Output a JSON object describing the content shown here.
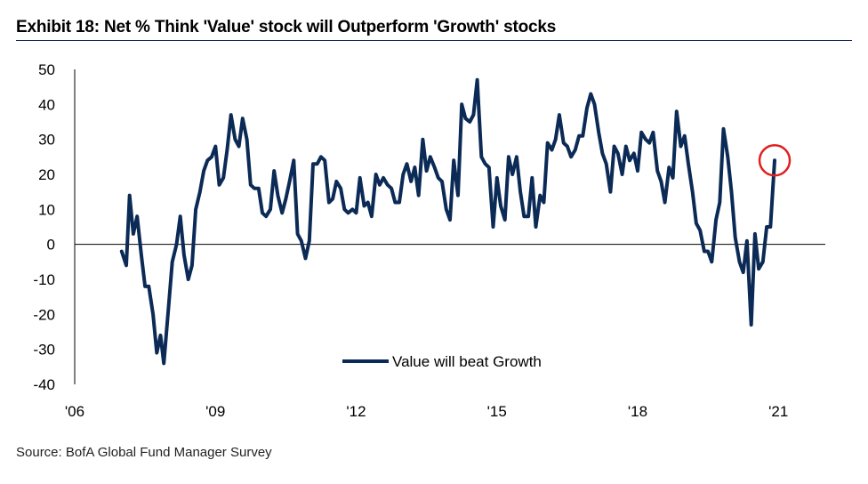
{
  "title": "Exhibit 18: Net % Think 'Value' stock will Outperform 'Growth' stocks",
  "source": "Source: BofA Global Fund Manager Survey",
  "chart_data": {
    "type": "line",
    "ylim": [
      -40,
      50
    ],
    "yticks": [
      50,
      40,
      30,
      20,
      10,
      0,
      -10,
      -20,
      -30,
      -40
    ],
    "ytick_labels": [
      "50",
      "40",
      "30",
      "20",
      "10",
      "0",
      "-10",
      "-20",
      "-30",
      "-40"
    ],
    "xlim": [
      2006,
      2022
    ],
    "xticks": [
      2006,
      2009,
      2012,
      2015,
      2018,
      2021
    ],
    "xtick_labels": [
      "'06",
      "'09",
      "'12",
      "'15",
      "'18",
      "'21"
    ],
    "grid": false,
    "legend_position": "bottom-center",
    "line_color": "#0b2a55",
    "highlight_color": "#e02020",
    "series": [
      {
        "name": "Value will beat Growth",
        "points": [
          [
            2007.0,
            -2
          ],
          [
            2007.1,
            -6
          ],
          [
            2007.17,
            14
          ],
          [
            2007.25,
            3
          ],
          [
            2007.33,
            8
          ],
          [
            2007.42,
            -3
          ],
          [
            2007.5,
            -12
          ],
          [
            2007.58,
            -12
          ],
          [
            2007.67,
            -20
          ],
          [
            2007.75,
            -31
          ],
          [
            2007.83,
            -26
          ],
          [
            2007.9,
            -34
          ],
          [
            2008.0,
            -18
          ],
          [
            2008.08,
            -5
          ],
          [
            2008.17,
            0
          ],
          [
            2008.25,
            8
          ],
          [
            2008.33,
            -3
          ],
          [
            2008.42,
            -10
          ],
          [
            2008.5,
            -6
          ],
          [
            2008.58,
            10
          ],
          [
            2008.67,
            15
          ],
          [
            2008.75,
            21
          ],
          [
            2008.83,
            24
          ],
          [
            2008.92,
            25
          ],
          [
            2009.0,
            28
          ],
          [
            2009.08,
            17
          ],
          [
            2009.17,
            19
          ],
          [
            2009.25,
            27
          ],
          [
            2009.33,
            37
          ],
          [
            2009.42,
            30
          ],
          [
            2009.5,
            28
          ],
          [
            2009.58,
            36
          ],
          [
            2009.67,
            30
          ],
          [
            2009.75,
            17
          ],
          [
            2009.83,
            16
          ],
          [
            2009.92,
            16
          ],
          [
            2010.0,
            9
          ],
          [
            2010.08,
            8
          ],
          [
            2010.17,
            10
          ],
          [
            2010.25,
            21
          ],
          [
            2010.33,
            14
          ],
          [
            2010.42,
            9
          ],
          [
            2010.5,
            13
          ],
          [
            2010.58,
            18
          ],
          [
            2010.67,
            24
          ],
          [
            2010.75,
            3
          ],
          [
            2010.83,
            1
          ],
          [
            2010.92,
            -4
          ],
          [
            2011.0,
            1
          ],
          [
            2011.08,
            23
          ],
          [
            2011.17,
            23
          ],
          [
            2011.25,
            25
          ],
          [
            2011.33,
            24
          ],
          [
            2011.42,
            12
          ],
          [
            2011.5,
            13
          ],
          [
            2011.58,
            18
          ],
          [
            2011.67,
            16
          ],
          [
            2011.75,
            10
          ],
          [
            2011.83,
            9
          ],
          [
            2011.92,
            10
          ],
          [
            2012.0,
            9
          ],
          [
            2012.08,
            19
          ],
          [
            2012.17,
            11
          ],
          [
            2012.25,
            12
          ],
          [
            2012.33,
            8
          ],
          [
            2012.42,
            20
          ],
          [
            2012.5,
            17
          ],
          [
            2012.58,
            19
          ],
          [
            2012.67,
            17
          ],
          [
            2012.75,
            16
          ],
          [
            2012.83,
            12
          ],
          [
            2012.92,
            12
          ],
          [
            2013.0,
            20
          ],
          [
            2013.08,
            23
          ],
          [
            2013.17,
            18
          ],
          [
            2013.25,
            22
          ],
          [
            2013.33,
            14
          ],
          [
            2013.42,
            30
          ],
          [
            2013.5,
            21
          ],
          [
            2013.58,
            25
          ],
          [
            2013.67,
            22
          ],
          [
            2013.75,
            19
          ],
          [
            2013.83,
            18
          ],
          [
            2013.92,
            10
          ],
          [
            2014.0,
            7
          ],
          [
            2014.08,
            24
          ],
          [
            2014.17,
            14
          ],
          [
            2014.25,
            40
          ],
          [
            2014.33,
            36
          ],
          [
            2014.42,
            35
          ],
          [
            2014.5,
            37
          ],
          [
            2014.58,
            47
          ],
          [
            2014.67,
            25
          ],
          [
            2014.75,
            23
          ],
          [
            2014.83,
            22
          ],
          [
            2014.92,
            5
          ],
          [
            2015.0,
            19
          ],
          [
            2015.08,
            11
          ],
          [
            2015.17,
            7
          ],
          [
            2015.25,
            25
          ],
          [
            2015.33,
            20
          ],
          [
            2015.42,
            25
          ],
          [
            2015.5,
            15
          ],
          [
            2015.58,
            8
          ],
          [
            2015.67,
            8
          ],
          [
            2015.75,
            19
          ],
          [
            2015.83,
            5
          ],
          [
            2015.92,
            14
          ],
          [
            2016.0,
            12
          ],
          [
            2016.08,
            29
          ],
          [
            2016.17,
            27
          ],
          [
            2016.25,
            30
          ],
          [
            2016.33,
            37
          ],
          [
            2016.42,
            29
          ],
          [
            2016.5,
            28
          ],
          [
            2016.58,
            25
          ],
          [
            2016.67,
            27
          ],
          [
            2016.75,
            31
          ],
          [
            2016.83,
            31
          ],
          [
            2016.92,
            39
          ],
          [
            2017.0,
            43
          ],
          [
            2017.08,
            40
          ],
          [
            2017.17,
            32
          ],
          [
            2017.25,
            26
          ],
          [
            2017.33,
            23
          ],
          [
            2017.42,
            15
          ],
          [
            2017.5,
            28
          ],
          [
            2017.58,
            26
          ],
          [
            2017.67,
            20
          ],
          [
            2017.75,
            28
          ],
          [
            2017.83,
            24
          ],
          [
            2017.92,
            26
          ],
          [
            2018.0,
            21
          ],
          [
            2018.08,
            32
          ],
          [
            2018.17,
            30
          ],
          [
            2018.25,
            29
          ],
          [
            2018.33,
            32
          ],
          [
            2018.42,
            21
          ],
          [
            2018.5,
            18
          ],
          [
            2018.58,
            12
          ],
          [
            2018.67,
            22
          ],
          [
            2018.75,
            19
          ],
          [
            2018.83,
            38
          ],
          [
            2018.92,
            28
          ],
          [
            2019.0,
            31
          ],
          [
            2019.08,
            23
          ],
          [
            2019.17,
            15
          ],
          [
            2019.25,
            6
          ],
          [
            2019.33,
            4
          ],
          [
            2019.42,
            -2
          ],
          [
            2019.5,
            -2
          ],
          [
            2019.58,
            -5
          ],
          [
            2019.67,
            7
          ],
          [
            2019.75,
            12
          ],
          [
            2019.83,
            33
          ],
          [
            2019.92,
            25
          ],
          [
            2020.0,
            15
          ],
          [
            2020.08,
            2
          ],
          [
            2020.17,
            -5
          ],
          [
            2020.25,
            -8
          ],
          [
            2020.33,
            1
          ],
          [
            2020.42,
            -23
          ],
          [
            2020.5,
            3
          ],
          [
            2020.58,
            -7
          ],
          [
            2020.67,
            -5
          ],
          [
            2020.75,
            5
          ],
          [
            2020.83,
            5
          ],
          [
            2020.92,
            24
          ]
        ]
      }
    ],
    "highlight_point": [
      2020.92,
      24
    ]
  }
}
